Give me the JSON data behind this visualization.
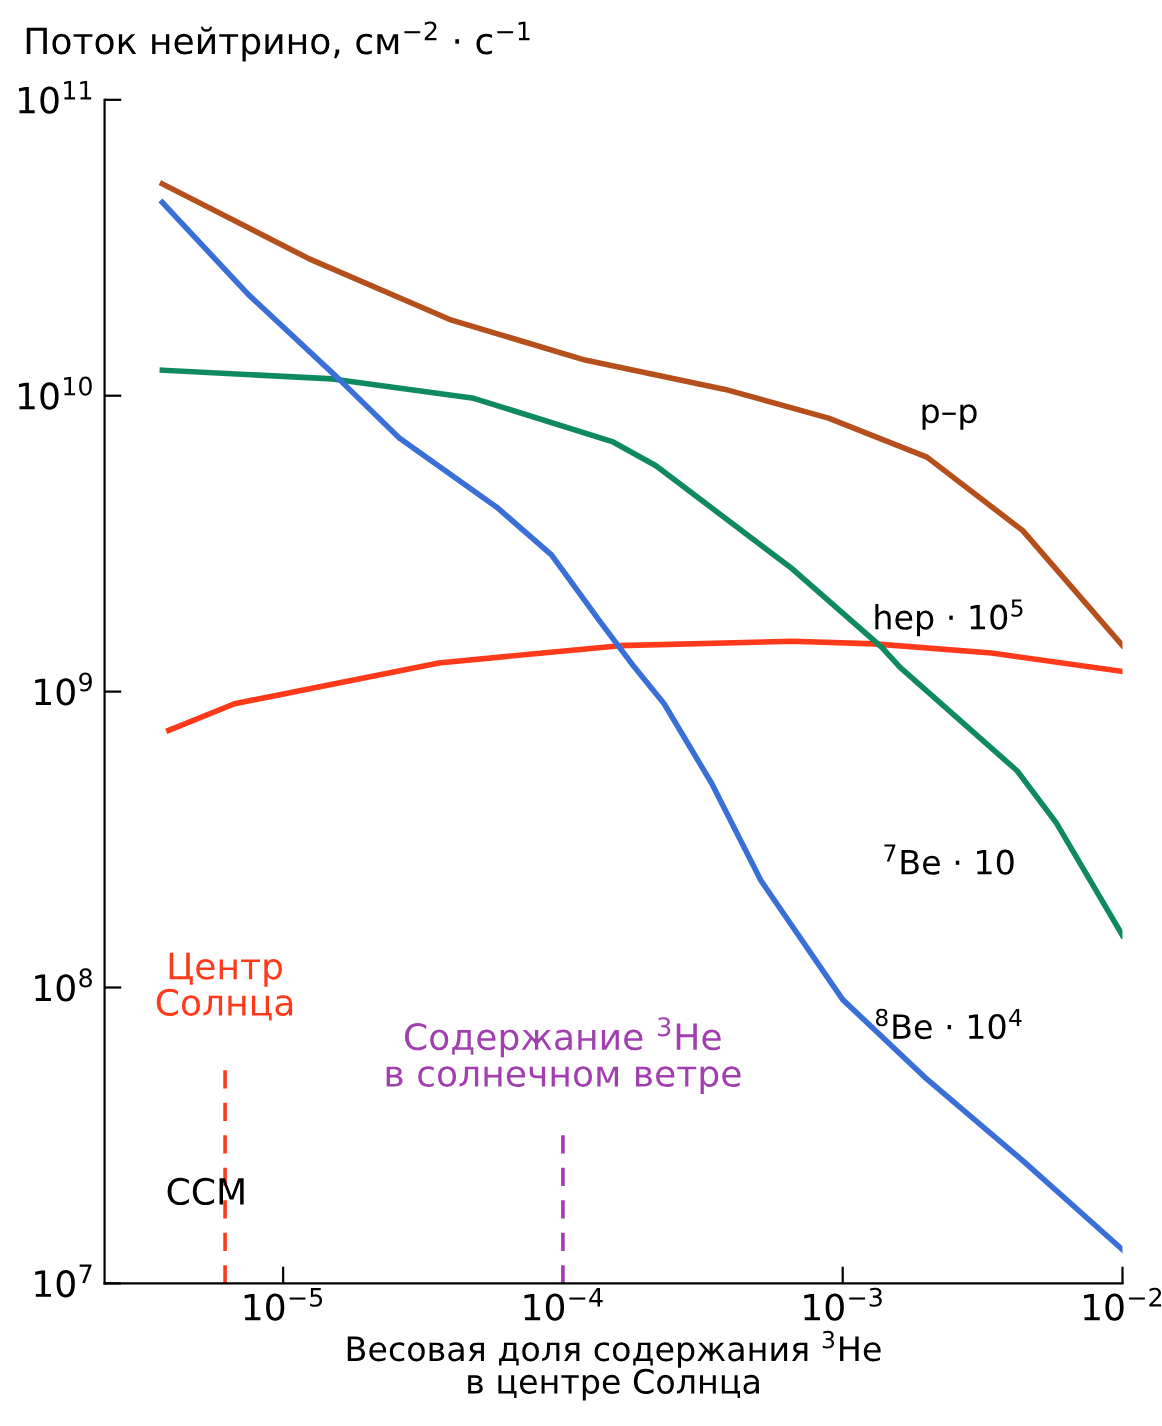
{
  "chart_data": {
    "type": "line",
    "log": "xy",
    "ylabel": "Поток нейтрино, см$^{−2}$ · с$^{−1}$",
    "xlabel": "Весовая доля содержания $^{3}$He\nв центре Солнца",
    "xlim": [
      2.3e-06,
      0.01
    ],
    "ylim": [
      10000000.0,
      100000000000.0
    ],
    "xticks": [
      {
        "value": 1e-05,
        "label": "10$^{−5}$"
      },
      {
        "value": 0.0001,
        "label": "10$^{−4}$"
      },
      {
        "value": 0.001,
        "label": "10$^{−3}$"
      },
      {
        "value": 0.01,
        "label": "10$^{−2}$"
      }
    ],
    "yticks": [
      {
        "value": 10000000.0,
        "label": "10$^{7}$"
      },
      {
        "value": 100000000.0,
        "label": "10$^{8}$"
      },
      {
        "value": 1000000000.0,
        "label": "10$^{9}$"
      },
      {
        "value": 10000000000.0,
        "label": "10$^{10}$"
      },
      {
        "value": 100000000000.0,
        "label": "10$^{11}$"
      }
    ],
    "grid": false,
    "legend": false,
    "marker": "none",
    "line_style": "solid",
    "series": [
      {
        "name": "p–p",
        "color": "#b5501c",
        "x": [
          3.7e-06,
          1.24e-05,
          4e-05,
          0.00012,
          0.00038,
          0.00089,
          0.002,
          0.0044,
          0.01
        ],
        "values": [
          52000000000.0,
          29000000000.0,
          18000000000.0,
          13200000000.0,
          10500000000.0,
          8400000000.0,
          6200000000.0,
          3500000000.0,
          1430000000.0
        ]
      },
      {
        "name": "hep · 10$^{5}$",
        "color": "#ff3a1a",
        "x": [
          3.9e-06,
          6.7e-06,
          3.6e-05,
          0.00016,
          0.00066,
          0.0013,
          0.0034,
          0.01
        ],
        "values": [
          740000000.0,
          910000000.0,
          1250000000.0,
          1430000000.0,
          1480000000.0,
          1450000000.0,
          1350000000.0,
          1170000000.0
        ]
      },
      {
        "name": "$^{7}$Be · 10",
        "color": "#0f8a5f",
        "x": [
          3.7e-06,
          1.5e-05,
          4.8e-05,
          0.00015,
          0.000215,
          0.00066,
          0.00138,
          0.0016,
          0.0042,
          0.0058,
          0.01
        ],
        "values": [
          12200000000.0,
          11400000000.0,
          9800000000.0,
          7000000000.0,
          5800000000.0,
          2600000000.0,
          1410000000.0,
          1210000000.0,
          540000000.0,
          360000000.0,
          150000000.0
        ]
      },
      {
        "name": "$^{8}$Be · 10$^{4}$",
        "color": "#3a6fd8",
        "x": [
          3.7e-06,
          7.5e-06,
          1.58e-05,
          2.6e-05,
          5.8e-05,
          9.1e-05,
          0.000136,
          0.00018,
          0.00023,
          0.00034,
          0.00051,
          0.001,
          0.002,
          0.0044,
          0.01
        ],
        "values": [
          45000000000.0,
          22000000000.0,
          11400000000.0,
          7200000000.0,
          4200000000.0,
          2900000000.0,
          1720000000.0,
          1210000000.0,
          910000000.0,
          490000000.0,
          230000000.0,
          91000000.0,
          49000000.0,
          26000000.0,
          13000000.0
        ]
      }
    ],
    "ref_lines": [
      {
        "axis": "x",
        "value": 6.2e-06,
        "label": "Центр\nСолнца",
        "color": "#ff3a1a",
        "line_style": "dashed"
      },
      {
        "axis": "x",
        "value": 0.0001,
        "label": "Содержание $^{3}$He\nв солнечном ветре",
        "color": "#a23fb0",
        "line_style": "dashed"
      }
    ],
    "annotations": [
      "ССМ"
    ]
  }
}
